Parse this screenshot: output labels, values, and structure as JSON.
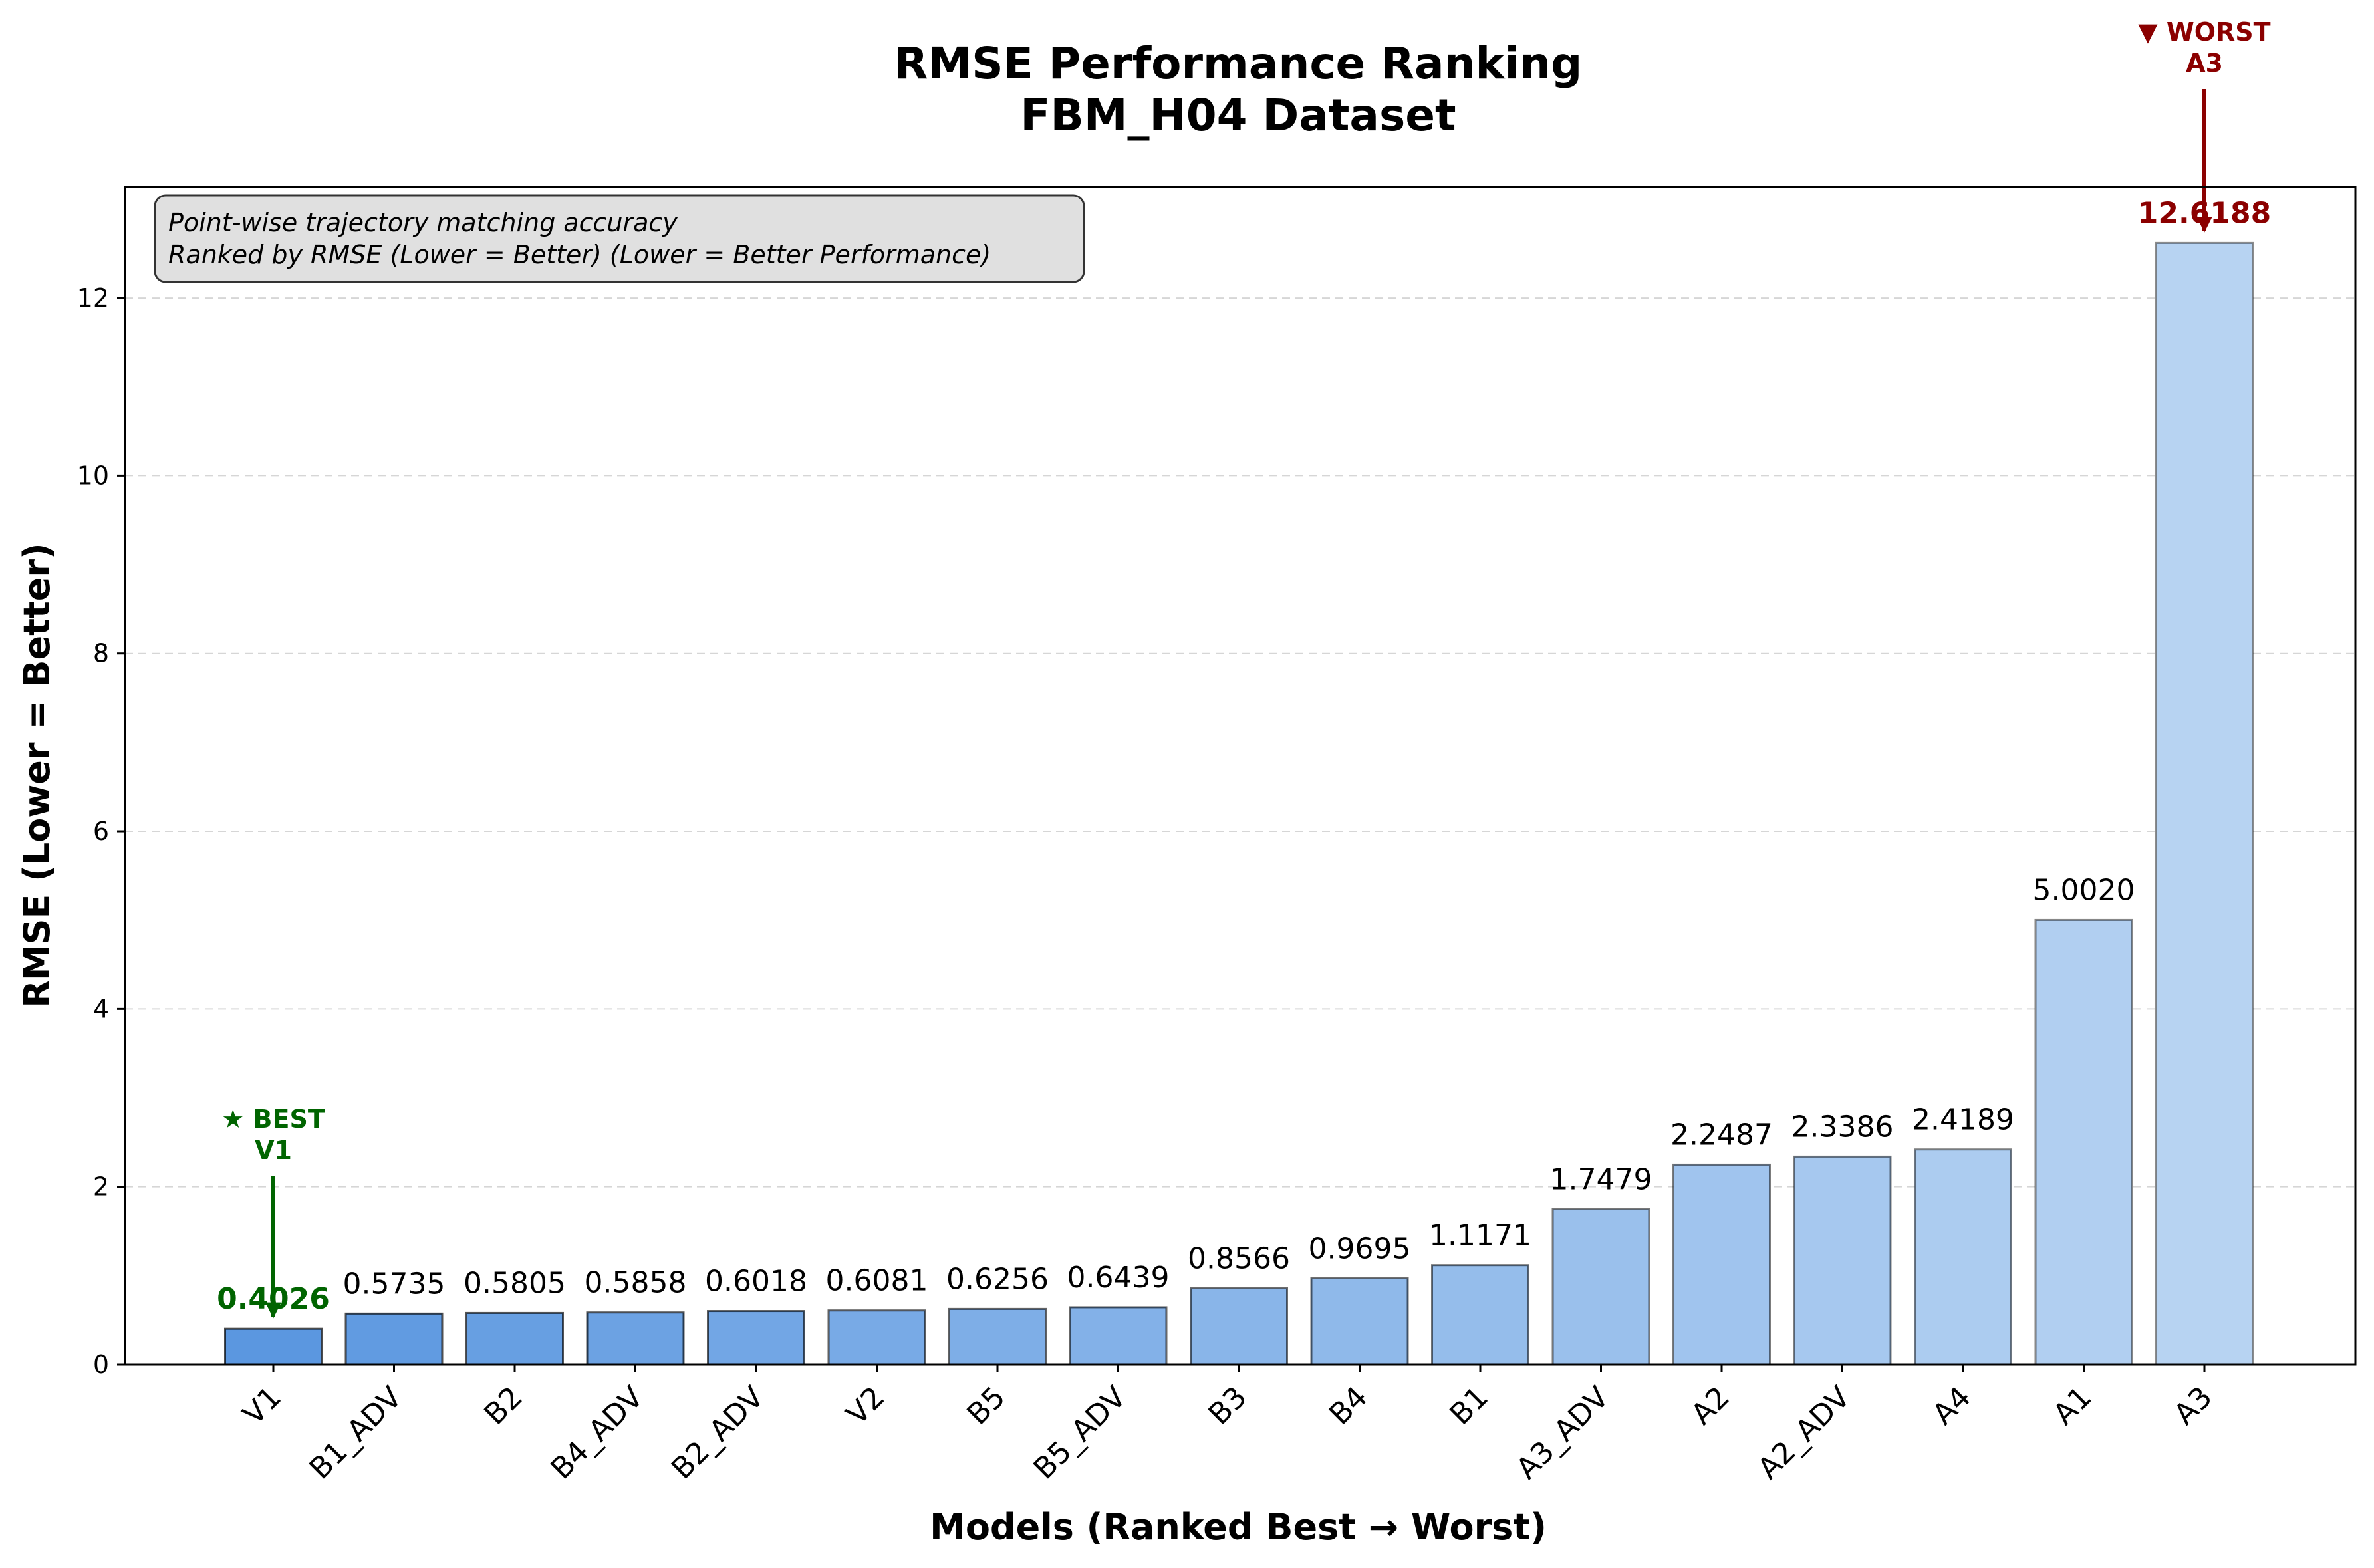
{
  "chart_data": {
    "type": "bar",
    "title": "RMSE Performance Ranking\nFBM_H04 Dataset",
    "title_lines": [
      "RMSE Performance Ranking",
      "FBM_H04 Dataset"
    ],
    "xlabel": "Models (Ranked Best → Worst)",
    "ylabel": "RMSE (Lower = Better)",
    "categories": [
      "V1",
      "B1_ADV",
      "B2",
      "B4_ADV",
      "B2_ADV",
      "V2",
      "B5",
      "B5_ADV",
      "B3",
      "B4",
      "B1",
      "A3_ADV",
      "A2",
      "A2_ADV",
      "A4",
      "A1",
      "A3"
    ],
    "values": [
      0.4026,
      0.5735,
      0.5805,
      0.5858,
      0.6018,
      0.6081,
      0.6256,
      0.6439,
      0.8566,
      0.9695,
      1.1171,
      1.7479,
      2.2487,
      2.3386,
      2.4189,
      5.002,
      12.6188
    ],
    "value_labels": [
      "0.4026",
      "0.5735",
      "0.5805",
      "0.5858",
      "0.6018",
      "0.6081",
      "0.6256",
      "0.6439",
      "0.8566",
      "0.9695",
      "1.1171",
      "1.7479",
      "2.2487",
      "2.3386",
      "2.4189",
      "5.0020",
      "12.6188"
    ],
    "ylim": [
      0,
      13.25
    ],
    "yticks": [
      0,
      2,
      4,
      6,
      8,
      10,
      12
    ],
    "grid": "y dashed",
    "bar_colors": {
      "start": "#5b97e0",
      "end": "#b7d3f2",
      "edge": "#000000"
    },
    "info_box": {
      "lines": [
        "Point-wise trajectory matching accuracy",
        "Ranked by RMSE (Lower = Better) (Lower = Better Performance)"
      ],
      "placement": "top-left"
    },
    "annotations": {
      "best": {
        "label": "★ BEST",
        "model": "V1",
        "color": "#006400"
      },
      "worst": {
        "label": "▼ WORST",
        "model": "A3",
        "color": "#8b0000"
      }
    }
  }
}
